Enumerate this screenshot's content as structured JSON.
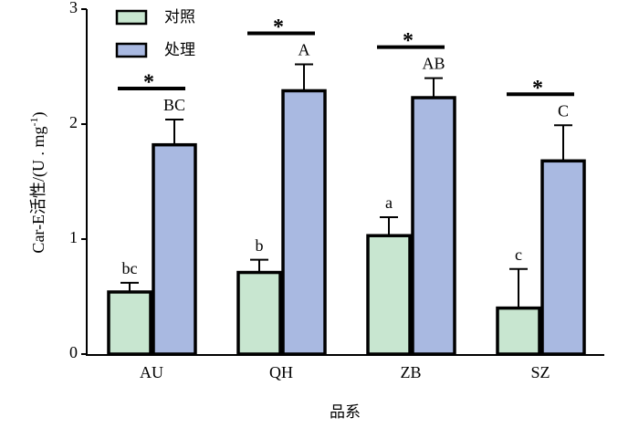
{
  "chart_data": {
    "type": "bar",
    "ylabel": {
      "main": "Car-E活性/(U . mg",
      "sup": "-1",
      "end": ")"
    },
    "xlabel": "品系",
    "categories": [
      "AU",
      "QH",
      "ZB",
      "SZ"
    ],
    "series": [
      {
        "name": "对照",
        "color": "#c8e6d0",
        "values": [
          0.54,
          0.71,
          1.03,
          0.4
        ],
        "errors": [
          0.08,
          0.11,
          0.16,
          0.34
        ],
        "letters": [
          "bc",
          "b",
          "a",
          "c"
        ]
      },
      {
        "name": "处理",
        "color": "#a9b9e1",
        "values": [
          1.82,
          2.29,
          2.23,
          1.68
        ],
        "errors": [
          0.22,
          0.23,
          0.17,
          0.31
        ],
        "letters": [
          "BC",
          "A",
          "AB",
          "C"
        ]
      }
    ],
    "significance": [
      "*",
      "*",
      "*",
      "*"
    ],
    "ylim": [
      0,
      3
    ],
    "yticks": [
      0,
      1,
      2,
      3
    ]
  }
}
